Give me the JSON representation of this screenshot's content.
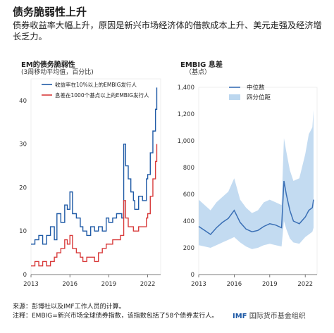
{
  "header": {
    "title": "债务脆弱性上升",
    "subtitle": "债券收益率大幅上升，原因是新兴市场经济体的借款成本上升、美元走强及经济增长乏力。"
  },
  "footer": {
    "source": "来源：彭博社以及IMF工作人员的计算。",
    "note": "注释：EMBIG=新兴市场全球债券指数，该指数包括了58个债券发行人。",
    "logo_text": "国际货币基金组织",
    "logo_mark": "IMF"
  },
  "colors": {
    "blue": "#1f5aa6",
    "red": "#d83b3b",
    "band": "#bcd7ef",
    "median": "#3a6fb5"
  },
  "chart_data": [
    {
      "type": "line",
      "title": "EM的债务脆弱性",
      "unit_label": "(3周移动平均值，百分比)",
      "xlabel": "",
      "ylabel": "",
      "xlim": [
        2013,
        2023
      ],
      "ylim": [
        0,
        45
      ],
      "yticks": [
        0,
        10,
        20,
        30,
        40
      ],
      "xticks": [
        "2013",
        "2016",
        "2019",
        "2022"
      ],
      "legend_position": "top-left",
      "series": [
        {
          "name": "收益率在10%以上的EMBIG发行人",
          "color": "#1f5aa6",
          "x": [
            2013.0,
            2013.3,
            2013.6,
            2013.9,
            2014.2,
            2014.5,
            2014.8,
            2015.0,
            2015.3,
            2015.6,
            2015.8,
            2016.0,
            2016.2,
            2016.5,
            2016.8,
            2017.0,
            2017.3,
            2017.6,
            2017.9,
            2018.2,
            2018.5,
            2018.8,
            2019.0,
            2019.3,
            2019.6,
            2019.9,
            2020.0,
            2020.15,
            2020.3,
            2020.5,
            2020.7,
            2020.9,
            2021.0,
            2021.3,
            2021.6,
            2021.9,
            2022.0,
            2022.2,
            2022.4,
            2022.6,
            2022.7
          ],
          "y": [
            7,
            8,
            9,
            7,
            9,
            11,
            8,
            14,
            12,
            16,
            15,
            19,
            14,
            13,
            11,
            10,
            9,
            11,
            10,
            11,
            10,
            13,
            12,
            13,
            14,
            14,
            13,
            30,
            25,
            22,
            19,
            17,
            15,
            18,
            17,
            22,
            23,
            28,
            33,
            38,
            43
          ]
        },
        {
          "name": "息差在1000个基点以上的EMBIG发行人",
          "color": "#d83b3b",
          "x": [
            2013.0,
            2013.3,
            2013.6,
            2013.9,
            2014.2,
            2014.5,
            2014.8,
            2015.0,
            2015.3,
            2015.6,
            2015.8,
            2016.0,
            2016.2,
            2016.5,
            2016.8,
            2017.0,
            2017.3,
            2017.6,
            2017.9,
            2018.2,
            2018.5,
            2018.8,
            2019.0,
            2019.3,
            2019.6,
            2019.9,
            2020.0,
            2020.15,
            2020.3,
            2020.5,
            2020.7,
            2020.9,
            2021.0,
            2021.3,
            2021.6,
            2021.9,
            2022.0,
            2022.2,
            2022.4,
            2022.6,
            2022.7
          ],
          "y": [
            2,
            3,
            2,
            3,
            2,
            3,
            4,
            5,
            6,
            8,
            7,
            9,
            6,
            5,
            4,
            3,
            4,
            4,
            3,
            5,
            6,
            7,
            7,
            8,
            8,
            9,
            9,
            17,
            13,
            11,
            11,
            10,
            10,
            11,
            11,
            13,
            14,
            18,
            22,
            26,
            30
          ]
        }
      ]
    },
    {
      "type": "area",
      "title": "EMBIG 息差",
      "unit_label": "（基点）",
      "xlabel": "",
      "ylabel": "",
      "xlim": [
        2013,
        2023
      ],
      "ylim": [
        0,
        1400
      ],
      "yticks": [
        "0",
        "200",
        "400",
        "600",
        "800",
        "1,000",
        "1,200",
        "1,400"
      ],
      "yvalues": [
        0,
        200,
        400,
        600,
        800,
        1000,
        1200,
        1400
      ],
      "xticks": [
        "2013",
        "2016",
        "2019",
        "2022"
      ],
      "legend_position": "top-left",
      "series": [
        {
          "name": "中位数",
          "color": "#3a6fb5",
          "x": [
            2013.0,
            2013.5,
            2014.0,
            2014.5,
            2015.0,
            2015.5,
            2016.0,
            2016.5,
            2017.0,
            2017.5,
            2018.0,
            2018.5,
            2019.0,
            2019.5,
            2020.0,
            2020.2,
            2020.4,
            2020.7,
            2021.0,
            2021.5,
            2022.0,
            2022.3,
            2022.6,
            2022.7
          ],
          "y": [
            360,
            330,
            300,
            350,
            390,
            420,
            480,
            390,
            340,
            320,
            330,
            360,
            380,
            370,
            350,
            700,
            600,
            480,
            400,
            380,
            430,
            480,
            500,
            560
          ]
        },
        {
          "name": "四分位距",
          "color": "#bcd7ef",
          "x": [
            2013.0,
            2013.5,
            2014.0,
            2014.5,
            2015.0,
            2015.5,
            2016.0,
            2016.5,
            2017.0,
            2017.5,
            2018.0,
            2018.5,
            2019.0,
            2019.5,
            2020.0,
            2020.2,
            2020.4,
            2020.7,
            2021.0,
            2021.5,
            2022.0,
            2022.3,
            2022.6,
            2022.7
          ],
          "y_low": [
            220,
            210,
            200,
            220,
            240,
            260,
            280,
            240,
            210,
            190,
            200,
            220,
            230,
            220,
            210,
            400,
            340,
            270,
            240,
            230,
            280,
            300,
            320,
            350
          ],
          "y_high": [
            560,
            520,
            480,
            540,
            580,
            620,
            720,
            560,
            500,
            460,
            480,
            540,
            560,
            540,
            520,
            1020,
            920,
            780,
            700,
            720,
            900,
            1050,
            1100,
            1230
          ]
        }
      ]
    }
  ]
}
